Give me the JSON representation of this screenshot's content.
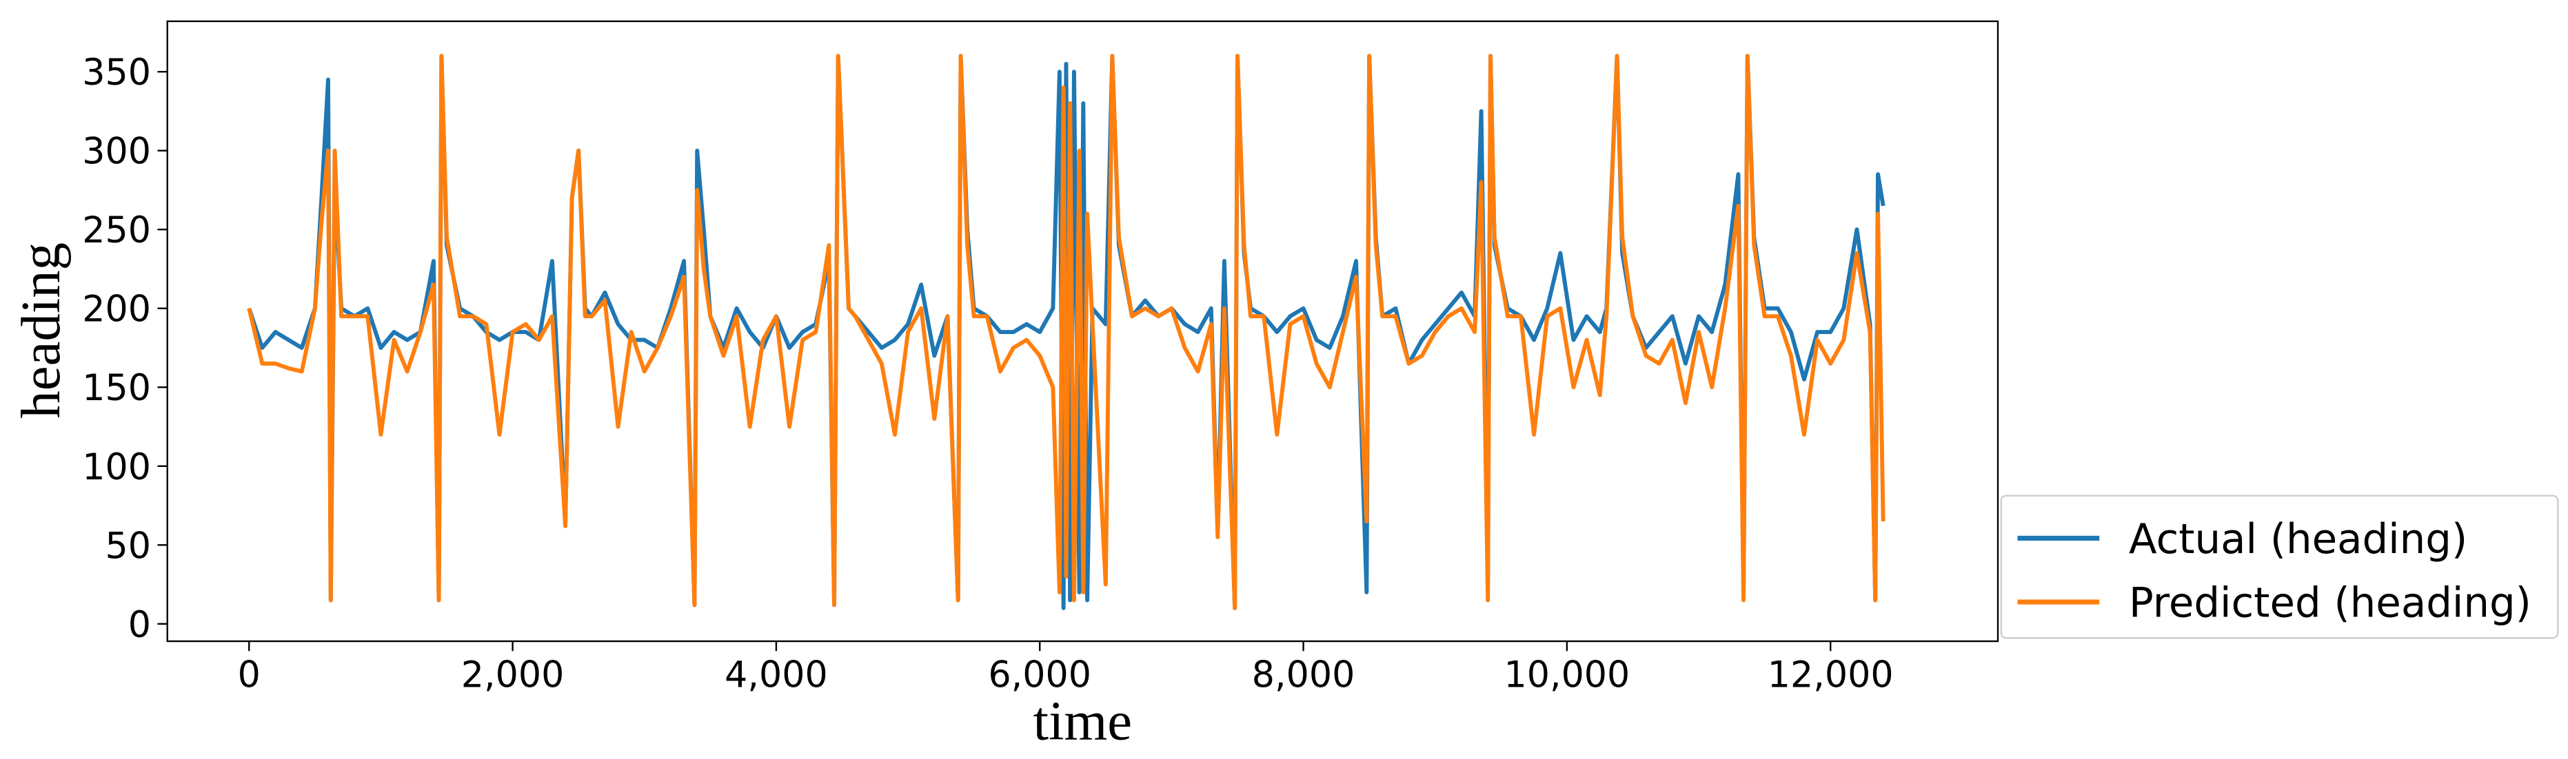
{
  "chart_data": {
    "type": "line",
    "xlabel": "time",
    "ylabel": "heading",
    "x": [
      0,
      100,
      200,
      300,
      400,
      500,
      550,
      600,
      620,
      650,
      700,
      800,
      900,
      1000,
      1100,
      1200,
      1300,
      1400,
      1440,
      1460,
      1500,
      1600,
      1700,
      1800,
      1900,
      2000,
      2100,
      2200,
      2300,
      2400,
      2450,
      2500,
      2550,
      2600,
      2700,
      2800,
      2900,
      3000,
      3100,
      3200,
      3300,
      3380,
      3400,
      3450,
      3500,
      3600,
      3700,
      3800,
      3900,
      4000,
      4100,
      4200,
      4300,
      4400,
      4440,
      4470,
      4550,
      4600,
      4700,
      4800,
      4900,
      5000,
      5100,
      5200,
      5300,
      5380,
      5400,
      5450,
      5500,
      5600,
      5700,
      5800,
      5900,
      6000,
      6100,
      6150,
      6180,
      6200,
      6230,
      6260,
      6300,
      6330,
      6360,
      6400,
      6500,
      6550,
      6600,
      6700,
      6800,
      6900,
      7000,
      7100,
      7200,
      7300,
      7350,
      7400,
      7480,
      7500,
      7550,
      7600,
      7700,
      7800,
      7900,
      8000,
      8100,
      8200,
      8300,
      8400,
      8480,
      8500,
      8550,
      8600,
      8700,
      8800,
      8900,
      9000,
      9100,
      9200,
      9300,
      9350,
      9400,
      9420,
      9450,
      9550,
      9650,
      9750,
      9850,
      9950,
      10050,
      10150,
      10250,
      10300,
      10380,
      10420,
      10500,
      10600,
      10700,
      10800,
      10900,
      11000,
      11100,
      11200,
      11300,
      11340,
      11370,
      11420,
      11500,
      11600,
      11700,
      11800,
      11900,
      12000,
      12100,
      12200,
      12300,
      12340,
      12360,
      12400
    ],
    "series": [
      {
        "name": "Actual (heading)",
        "color": "#1f77b4",
        "values": [
          200,
          175,
          185,
          180,
          175,
          200,
          270,
          345,
          15,
          280,
          200,
          195,
          200,
          175,
          185,
          180,
          185,
          230,
          15,
          360,
          240,
          200,
          195,
          185,
          180,
          185,
          185,
          180,
          230,
          65,
          270,
          300,
          200,
          195,
          210,
          190,
          180,
          180,
          175,
          200,
          230,
          12,
          300,
          250,
          195,
          175,
          200,
          185,
          175,
          195,
          175,
          185,
          190,
          230,
          12,
          360,
          200,
          195,
          185,
          175,
          180,
          190,
          215,
          170,
          195,
          15,
          360,
          250,
          200,
          195,
          185,
          185,
          190,
          185,
          200,
          350,
          10,
          355,
          15,
          350,
          20,
          330,
          15,
          200,
          190,
          360,
          240,
          195,
          205,
          195,
          200,
          190,
          185,
          200,
          60,
          230,
          10,
          360,
          235,
          200,
          195,
          185,
          195,
          200,
          180,
          175,
          195,
          230,
          20,
          360,
          245,
          195,
          200,
          165,
          180,
          190,
          200,
          210,
          195,
          325,
          25,
          360,
          240,
          200,
          195,
          180,
          200,
          235,
          180,
          195,
          185,
          200,
          360,
          235,
          195,
          175,
          185,
          195,
          165,
          195,
          185,
          215,
          285,
          20,
          360,
          245,
          200,
          200,
          185,
          155,
          185,
          185,
          200,
          250,
          190,
          15,
          285,
          265
        ]
      },
      {
        "name": "Predicted (heading)",
        "color": "#ff7f0e",
        "values": [
          200,
          165,
          165,
          162,
          160,
          200,
          255,
          300,
          15,
          300,
          195,
          195,
          195,
          120,
          180,
          160,
          185,
          215,
          15,
          360,
          245,
          195,
          195,
          190,
          120,
          185,
          190,
          180,
          195,
          62,
          270,
          300,
          195,
          195,
          205,
          125,
          185,
          160,
          175,
          195,
          220,
          12,
          275,
          225,
          195,
          170,
          195,
          125,
          180,
          195,
          125,
          180,
          185,
          240,
          12,
          360,
          200,
          195,
          180,
          165,
          120,
          185,
          200,
          130,
          195,
          15,
          360,
          240,
          195,
          195,
          160,
          175,
          180,
          170,
          150,
          20,
          340,
          30,
          330,
          15,
          300,
          20,
          260,
          190,
          25,
          360,
          245,
          195,
          200,
          195,
          200,
          175,
          160,
          190,
          55,
          200,
          10,
          360,
          240,
          195,
          195,
          120,
          190,
          195,
          165,
          150,
          185,
          220,
          65,
          360,
          240,
          195,
          195,
          165,
          170,
          185,
          195,
          200,
          185,
          280,
          15,
          360,
          245,
          195,
          195,
          120,
          195,
          200,
          150,
          180,
          145,
          195,
          360,
          245,
          195,
          170,
          165,
          180,
          140,
          185,
          150,
          200,
          265,
          15,
          360,
          240,
          195,
          195,
          170,
          120,
          180,
          165,
          180,
          235,
          185,
          15,
          260,
          65
        ]
      }
    ],
    "xlim": [
      -620,
      13270
    ],
    "ylim": [
      -11,
      382
    ],
    "xticks": [
      0,
      {
        "value": 2000,
        "label": "2,000"
      },
      {
        "value": 4000,
        "label": "4,000"
      },
      {
        "value": 6000,
        "label": "6,000"
      },
      {
        "value": 8000,
        "label": "8,000"
      },
      {
        "value": 10000,
        "label": "10,000"
      },
      {
        "value": 12000,
        "label": "12,000"
      }
    ],
    "yticks": [
      0,
      50,
      100,
      150,
      200,
      250,
      300,
      350
    ],
    "legend": "lower right outside"
  }
}
